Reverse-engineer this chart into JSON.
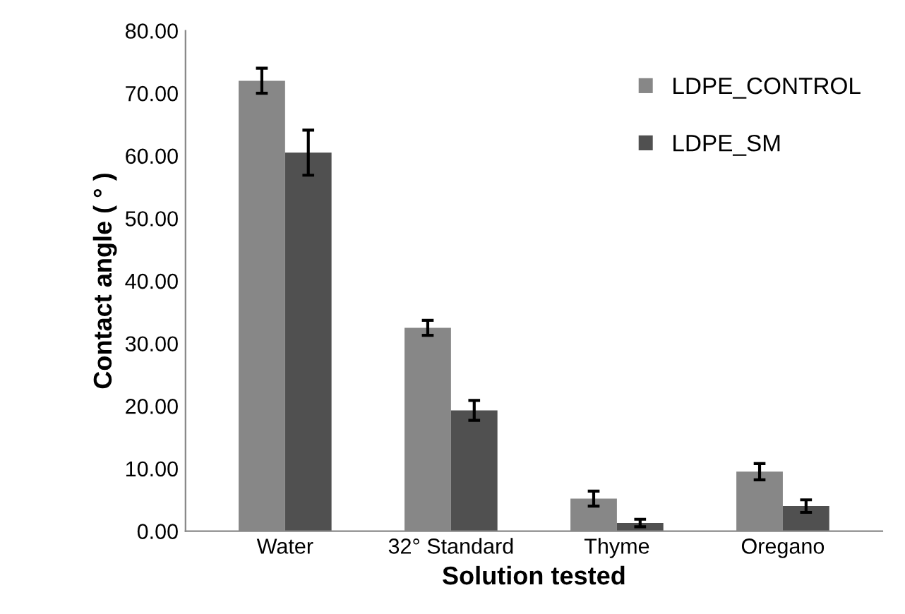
{
  "chart_data": {
    "type": "bar",
    "xlabel": "Solution tested",
    "ylabel": "Contact angle ( ° )",
    "categories": [
      "Water",
      "32° Standard",
      "Thyme",
      "Oregano"
    ],
    "series": [
      {
        "name": "LDPE_CONTROL",
        "color": "#878787",
        "values": [
          72.0,
          32.5,
          5.2,
          9.5
        ],
        "errors": [
          2.0,
          1.2,
          1.2,
          1.3
        ]
      },
      {
        "name": "LDPE_SM",
        "color": "#505050",
        "values": [
          60.5,
          19.3,
          1.3,
          4.0
        ],
        "errors": [
          3.6,
          1.6,
          0.6,
          1.0
        ]
      }
    ],
    "ylim": [
      0,
      80
    ],
    "yticks": [
      {
        "value": 0,
        "label": "0.00"
      },
      {
        "value": 10,
        "label": "10.00"
      },
      {
        "value": 20,
        "label": "20.00"
      },
      {
        "value": 30,
        "label": "30.00"
      },
      {
        "value": 40,
        "label": "40.00"
      },
      {
        "value": 50,
        "label": "50.00"
      },
      {
        "value": 60,
        "label": "60.00"
      },
      {
        "value": 70,
        "label": "70.00"
      },
      {
        "value": 80,
        "label": "80.00"
      }
    ],
    "grid": false,
    "legend": "top right"
  }
}
